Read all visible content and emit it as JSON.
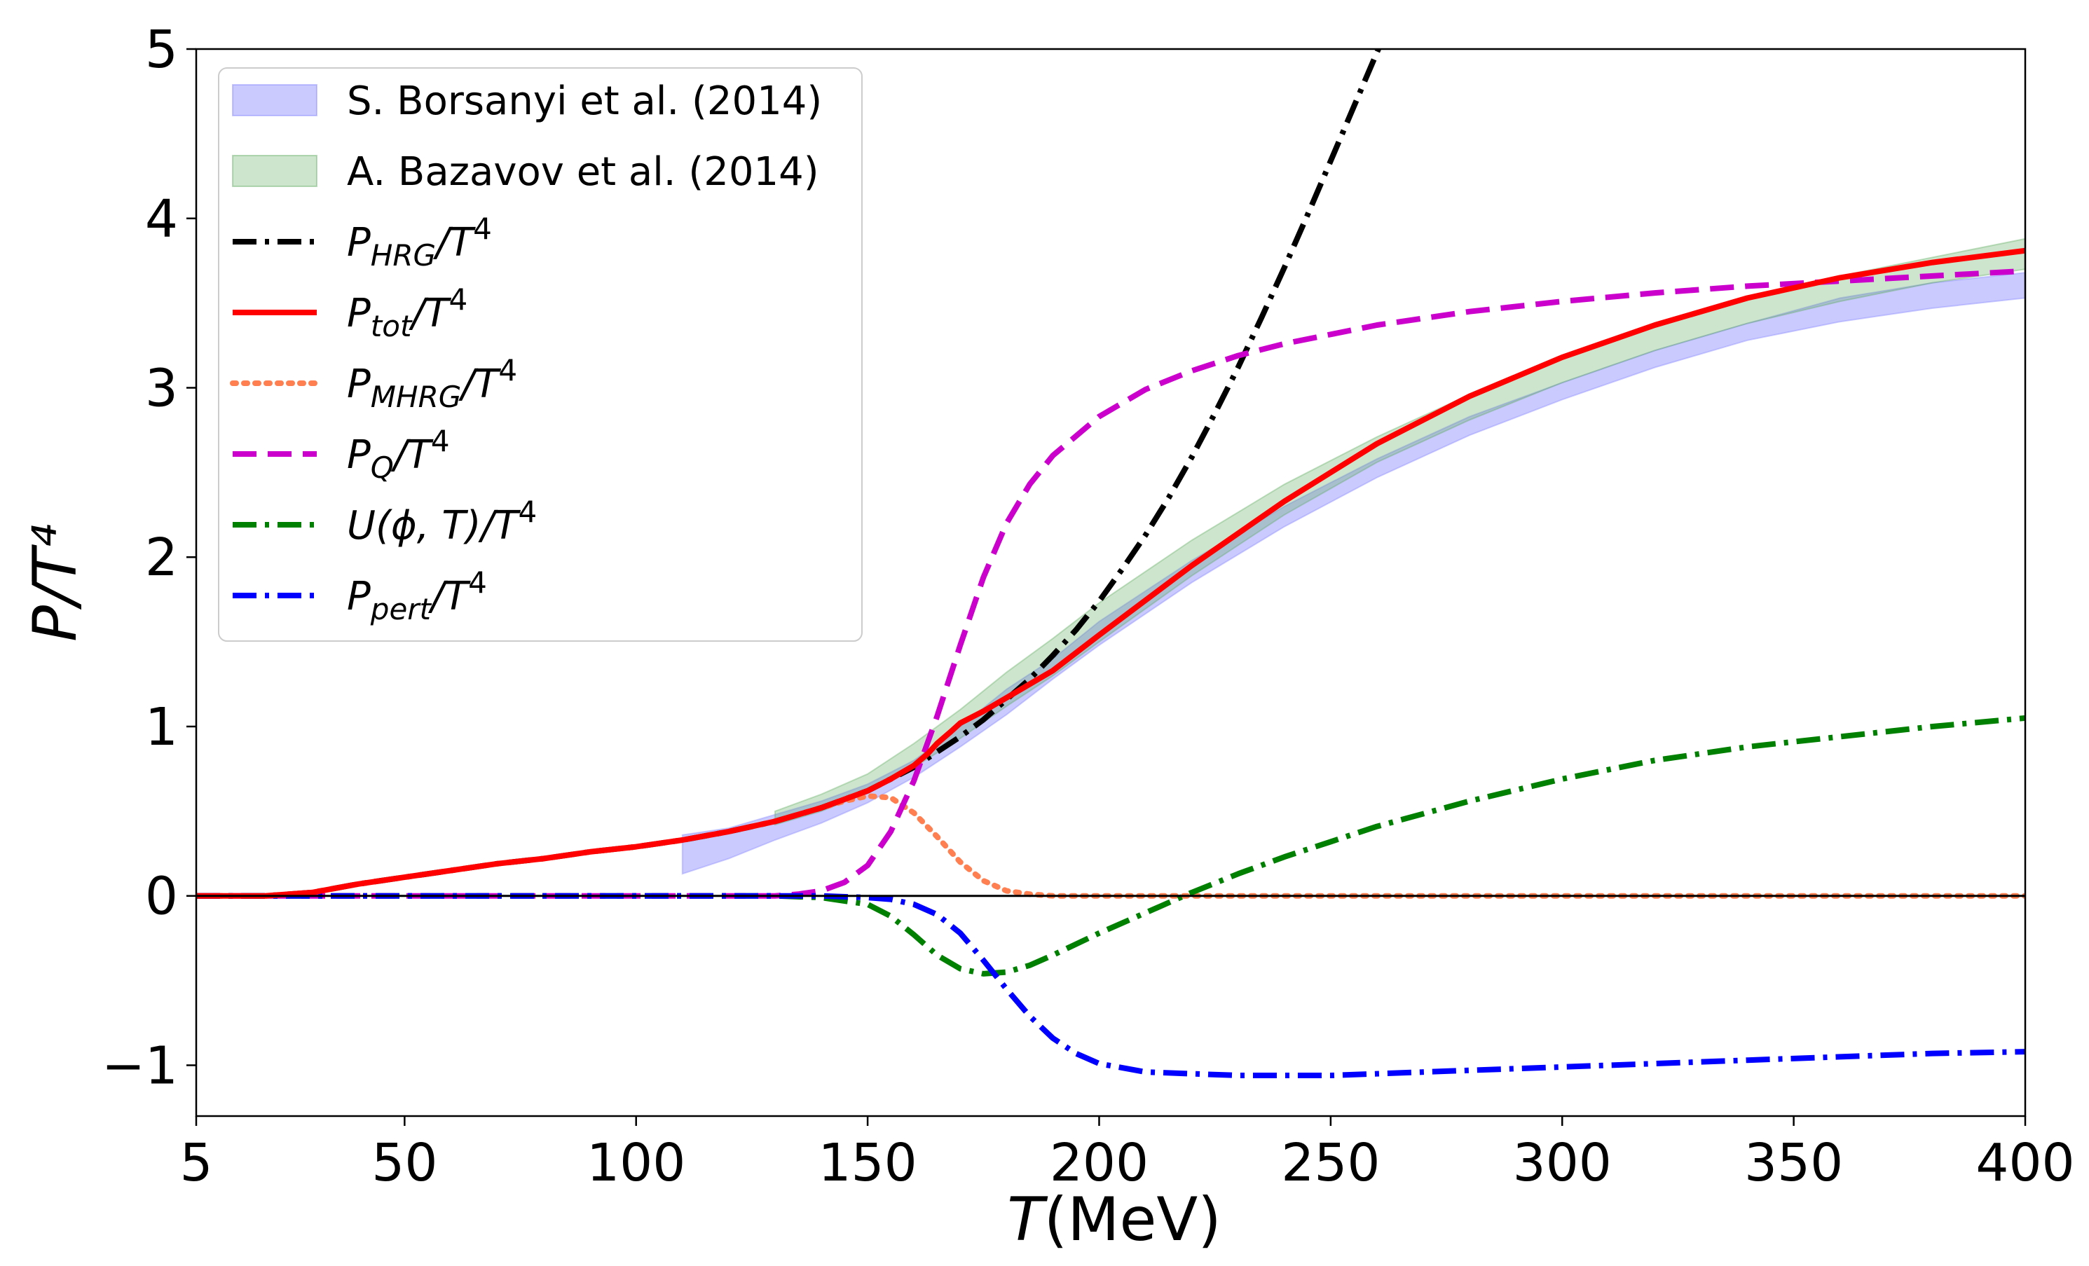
{
  "chart_data": {
    "type": "line",
    "title": "",
    "xlabel": {
      "italic": "T",
      "rest": "(MeV)"
    },
    "ylabel": "P/T⁴",
    "xlim": [
      5,
      400
    ],
    "ylim": [
      -1.3,
      5
    ],
    "xticks": [
      5,
      50,
      100,
      150,
      200,
      250,
      300,
      350,
      400
    ],
    "xtick_labels": [
      "5",
      "50",
      "100",
      "150",
      "200",
      "250",
      "300",
      "350",
      "400"
    ],
    "yticks": [
      -1,
      0,
      1,
      2,
      3,
      4,
      5
    ],
    "ytick_labels": [
      "−1",
      "0",
      "1",
      "2",
      "3",
      "4",
      "5"
    ],
    "grid": false,
    "legend_position": "top-left",
    "bands": [
      {
        "name": "S. Borsanyi et al. (2014)",
        "color": "#7b7bff",
        "opacity": 0.4,
        "x": [
          110,
          120,
          130,
          140,
          150,
          160,
          170,
          180,
          190,
          200,
          220,
          240,
          260,
          280,
          300,
          320,
          340,
          360,
          380,
          400
        ],
        "lower": [
          0.13,
          0.22,
          0.33,
          0.43,
          0.55,
          0.7,
          0.88,
          1.07,
          1.28,
          1.48,
          1.85,
          2.18,
          2.47,
          2.72,
          2.93,
          3.12,
          3.28,
          3.39,
          3.47,
          3.53
        ],
        "upper": [
          0.36,
          0.4,
          0.48,
          0.56,
          0.66,
          0.8,
          1.0,
          1.22,
          1.4,
          1.62,
          1.98,
          2.3,
          2.58,
          2.83,
          3.03,
          3.22,
          3.38,
          3.53,
          3.62,
          3.68
        ]
      },
      {
        "name": "A. Bazavov et al. (2014)",
        "color": "#59a859",
        "opacity": 0.3,
        "x": [
          130,
          140,
          150,
          160,
          170,
          180,
          190,
          200,
          220,
          240,
          260,
          280,
          300,
          320,
          340,
          360,
          380,
          400
        ],
        "lower": [
          0.42,
          0.5,
          0.61,
          0.76,
          0.93,
          1.12,
          1.3,
          1.5,
          1.89,
          2.25,
          2.56,
          2.81,
          3.03,
          3.22,
          3.38,
          3.51,
          3.62,
          3.7
        ],
        "upper": [
          0.5,
          0.6,
          0.72,
          0.9,
          1.1,
          1.32,
          1.52,
          1.73,
          2.1,
          2.43,
          2.71,
          2.96,
          3.17,
          3.36,
          3.52,
          3.66,
          3.77,
          3.88
        ]
      }
    ],
    "series": [
      {
        "name": "P_HRG/T^4",
        "color": "#000000",
        "style": "dashdot",
        "x": [
          5,
          10,
          20,
          30,
          40,
          50,
          60,
          70,
          80,
          90,
          100,
          110,
          120,
          130,
          140,
          150,
          155,
          160,
          165,
          170,
          175,
          180,
          185,
          190,
          195,
          200,
          205,
          210,
          215,
          220,
          225,
          230,
          235,
          240,
          245,
          250,
          255,
          260,
          265
        ],
        "values": [
          0.0,
          0.0,
          0.0,
          0.02,
          0.07,
          0.11,
          0.15,
          0.19,
          0.22,
          0.26,
          0.29,
          0.33,
          0.38,
          0.44,
          0.52,
          0.62,
          0.69,
          0.76,
          0.85,
          0.94,
          1.04,
          1.16,
          1.28,
          1.42,
          1.57,
          1.74,
          1.93,
          2.13,
          2.35,
          2.59,
          2.85,
          3.12,
          3.41,
          3.71,
          4.02,
          4.34,
          4.66,
          4.98,
          5.3
        ]
      },
      {
        "name": "P_tot/T^4",
        "color": "#ff0000",
        "style": "solid",
        "x": [
          5,
          10,
          20,
          30,
          40,
          50,
          60,
          70,
          80,
          90,
          100,
          110,
          120,
          130,
          140,
          150,
          155,
          160,
          163,
          165,
          168,
          170,
          175,
          180,
          185,
          190,
          200,
          220,
          240,
          260,
          280,
          300,
          320,
          340,
          360,
          380,
          400
        ],
        "values": [
          0.0,
          0.0,
          0.0,
          0.02,
          0.07,
          0.11,
          0.15,
          0.19,
          0.22,
          0.26,
          0.29,
          0.33,
          0.38,
          0.44,
          0.52,
          0.62,
          0.69,
          0.77,
          0.84,
          0.9,
          0.97,
          1.02,
          1.09,
          1.17,
          1.25,
          1.33,
          1.54,
          1.95,
          2.33,
          2.67,
          2.95,
          3.18,
          3.37,
          3.53,
          3.65,
          3.74,
          3.81
        ]
      },
      {
        "name": "P_MHRG/T^4",
        "color": "#ff7f50",
        "style": "dotted",
        "x": [
          5,
          10,
          20,
          30,
          40,
          50,
          60,
          70,
          80,
          90,
          100,
          110,
          120,
          130,
          140,
          145,
          150,
          155,
          160,
          165,
          170,
          175,
          180,
          185,
          190,
          200,
          250,
          300,
          350,
          400
        ],
        "values": [
          0.0,
          0.0,
          0.0,
          0.02,
          0.07,
          0.11,
          0.15,
          0.19,
          0.22,
          0.26,
          0.29,
          0.33,
          0.38,
          0.44,
          0.52,
          0.56,
          0.59,
          0.58,
          0.49,
          0.35,
          0.2,
          0.09,
          0.03,
          0.01,
          0.0,
          0.0,
          0.0,
          0.0,
          0.0,
          0.0
        ]
      },
      {
        "name": "P_Q/T^4",
        "color": "#cc00cc",
        "style": "dashed",
        "x": [
          5,
          50,
          100,
          120,
          130,
          135,
          140,
          145,
          150,
          155,
          160,
          165,
          170,
          175,
          180,
          185,
          190,
          200,
          210,
          220,
          230,
          240,
          260,
          280,
          300,
          320,
          340,
          360,
          380,
          400
        ],
        "values": [
          0.0,
          0.0,
          0.0,
          0.0,
          0.0,
          0.01,
          0.03,
          0.08,
          0.18,
          0.38,
          0.68,
          1.06,
          1.48,
          1.88,
          2.2,
          2.43,
          2.6,
          2.83,
          2.99,
          3.1,
          3.19,
          3.26,
          3.37,
          3.45,
          3.51,
          3.56,
          3.6,
          3.63,
          3.66,
          3.69
        ]
      },
      {
        "name": "U(φ, T)/T^4",
        "color": "#008000",
        "style": "dashdot",
        "x": [
          5,
          50,
          100,
          130,
          140,
          150,
          155,
          160,
          165,
          170,
          175,
          180,
          185,
          190,
          200,
          210,
          220,
          230,
          240,
          250,
          260,
          280,
          300,
          320,
          340,
          360,
          380,
          400
        ],
        "values": [
          0.0,
          0.0,
          0.0,
          0.0,
          -0.01,
          -0.05,
          -0.12,
          -0.23,
          -0.35,
          -0.43,
          -0.46,
          -0.45,
          -0.41,
          -0.35,
          -0.22,
          -0.1,
          0.02,
          0.13,
          0.23,
          0.32,
          0.41,
          0.56,
          0.69,
          0.8,
          0.88,
          0.94,
          1.0,
          1.05
        ]
      },
      {
        "name": "P_pert/T^4",
        "color": "#0000ff",
        "style": "dashdot",
        "x": [
          5,
          50,
          100,
          140,
          150,
          155,
          160,
          165,
          170,
          175,
          180,
          185,
          190,
          195,
          200,
          210,
          220,
          230,
          240,
          250,
          260,
          280,
          300,
          320,
          340,
          360,
          380,
          400
        ],
        "values": [
          0.0,
          0.0,
          0.0,
          0.0,
          -0.01,
          -0.02,
          -0.05,
          -0.11,
          -0.22,
          -0.38,
          -0.55,
          -0.71,
          -0.84,
          -0.93,
          -0.99,
          -1.04,
          -1.05,
          -1.06,
          -1.06,
          -1.06,
          -1.05,
          -1.03,
          -1.01,
          -0.99,
          -0.97,
          -0.95,
          -0.93,
          -0.92
        ]
      }
    ],
    "reference_line": {
      "y": 0,
      "color": "#000000"
    },
    "legend": {
      "bands": [
        "S. Borsanyi et al. (2014)",
        "A. Bazavov et al. (2014)"
      ],
      "series": [
        {
          "main": "P",
          "sub": "HRG",
          "tail": "/T",
          "sup": "4"
        },
        {
          "main": "P",
          "sub": "tot",
          "tail": "/T",
          "sup": "4"
        },
        {
          "main": "P",
          "sub": "MHRG",
          "tail": "/T",
          "sup": "4"
        },
        {
          "main": "P",
          "sub": "Q",
          "tail": "/T",
          "sup": "4"
        },
        {
          "main": "U(ϕ, T)",
          "sub": "",
          "tail": "/T",
          "sup": "4"
        },
        {
          "main": "P",
          "sub": "pert",
          "tail": "/T",
          "sup": "4"
        }
      ]
    }
  }
}
